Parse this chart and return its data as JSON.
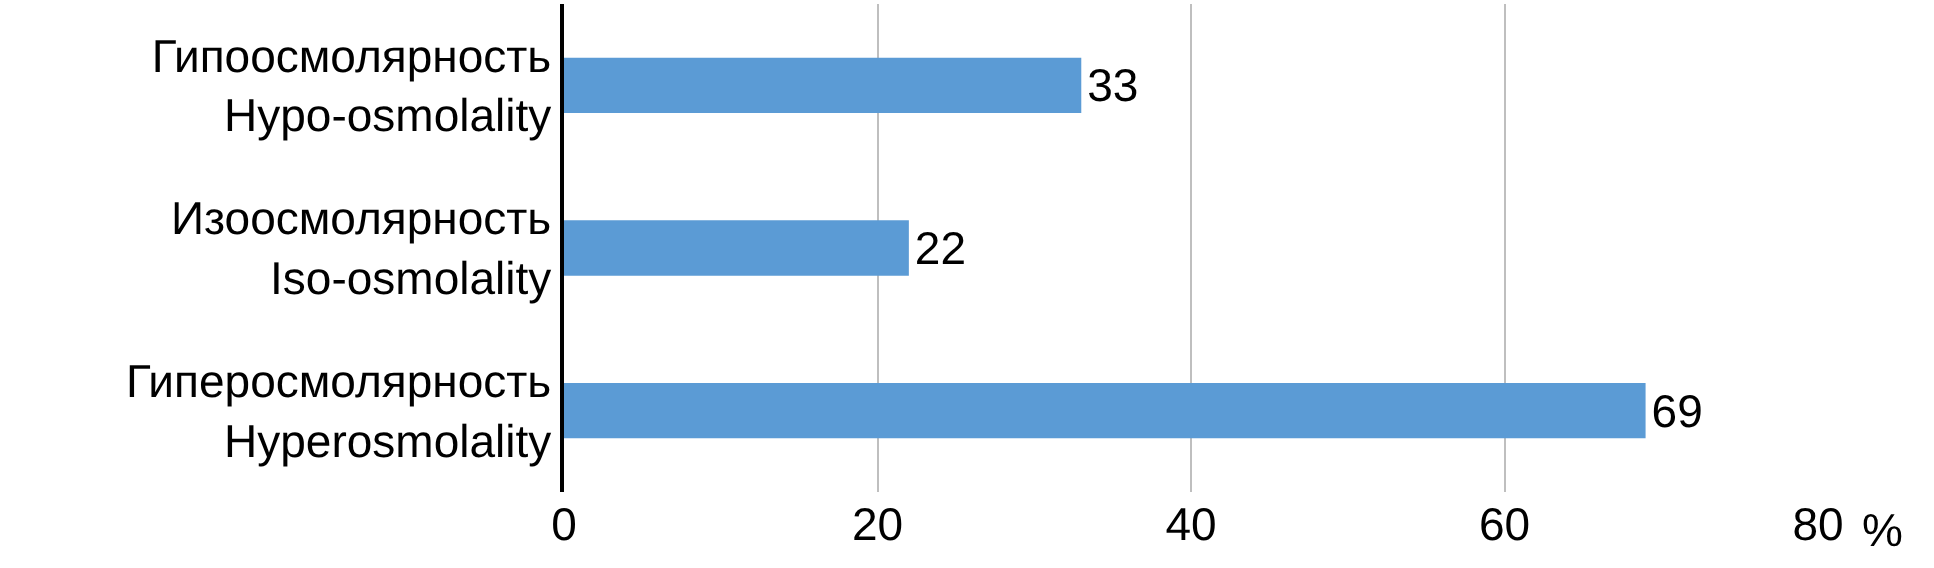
{
  "chart_data": {
    "type": "bar",
    "orientation": "horizontal",
    "categories": [
      "Гипоосмолярность\nHypo-osmolality",
      "Изоосмолярность\nIso-osmolality",
      "Гиперосмолярность\nHyperosmolality"
    ],
    "values": [
      33,
      22,
      69
    ],
    "color": "#5b9bd5",
    "data_labels": true,
    "xlim": [
      0,
      80
    ],
    "xticks": [
      0,
      20,
      40,
      60,
      80
    ],
    "xlabel": "%",
    "grid": "x",
    "legend": false
  }
}
